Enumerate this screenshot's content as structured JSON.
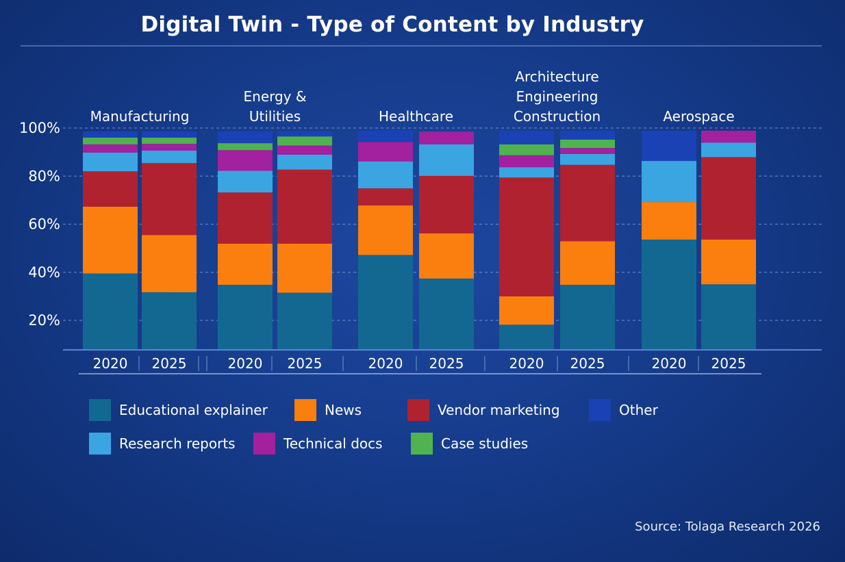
{
  "chart_data": {
    "type": "bar",
    "stacked": true,
    "title": "Digital Twin - Type of Content by Industry",
    "xlabel": "",
    "ylabel": "",
    "ylim": [
      8,
      100
    ],
    "yticks": [
      "20%",
      "40%",
      "60%",
      "80%",
      "100%"
    ],
    "ytick_values": [
      20,
      40,
      60,
      80,
      100
    ],
    "grid": "horizontal dashed",
    "legend_position": "bottom",
    "groups": [
      {
        "name": "Manufacturing",
        "lines": [
          "Manufacturing"
        ]
      },
      {
        "name": "Energy & Utilities",
        "lines": [
          "Energy &",
          "Utilities"
        ]
      },
      {
        "name": "Healthcare",
        "lines": [
          "Healthcare"
        ]
      },
      {
        "name": "Architecture Engineering Construction",
        "lines": [
          "Architecture",
          "Engineering",
          "Construction"
        ]
      },
      {
        "name": "Aerospace",
        "lines": [
          "Aerospace"
        ]
      }
    ],
    "categories": [
      "2020",
      "2025",
      "2020",
      "2025",
      "2020",
      "2025",
      "2020",
      "2025",
      "2020",
      "2025"
    ],
    "series": [
      {
        "name": "Educational explainer",
        "color": "#136892",
        "values": [
          39.5,
          31.7,
          34.8,
          31.5,
          47.2,
          37.4,
          18.2,
          34.8,
          53.6,
          35.0
        ]
      },
      {
        "name": "News",
        "color": "#fb7f0e",
        "values": [
          27.8,
          23.8,
          17.1,
          20.4,
          20.6,
          18.8,
          11.8,
          18.1,
          15.6,
          18.6
        ]
      },
      {
        "name": "Vendor marketing",
        "color": "#b0222f",
        "values": [
          14.7,
          29.9,
          21.3,
          30.8,
          7.1,
          23.9,
          49.4,
          31.8,
          0,
          34.3
        ]
      },
      {
        "name": "Research reports",
        "color": "#3ba5e2",
        "values": [
          7.8,
          5.2,
          9.0,
          6.2,
          11.2,
          13.1,
          4.3,
          4.5,
          17.1,
          6.0
        ]
      },
      {
        "name": "Technical docs",
        "color": "#a3209e",
        "values": [
          3.4,
          2.8,
          8.6,
          3.8,
          8.1,
          5.3,
          5.0,
          2.5,
          0,
          5.0
        ]
      },
      {
        "name": "Case studies",
        "color": "#4fb34f",
        "values": [
          2.8,
          2.6,
          2.9,
          3.8,
          0,
          0,
          4.5,
          3.5,
          0,
          0
        ]
      },
      {
        "name": "Other",
        "color": "#1a42b4",
        "values": [
          2.6,
          2.6,
          4.9,
          2.1,
          4.7,
          0,
          5.7,
          3.7,
          12.6,
          0
        ]
      }
    ],
    "legend_order": [
      "Educational explainer",
      "News",
      "Vendor marketing",
      "Other",
      "Research reports",
      "Technical docs",
      "Case studies"
    ],
    "source": "Source: Tolaga Research 2026"
  }
}
